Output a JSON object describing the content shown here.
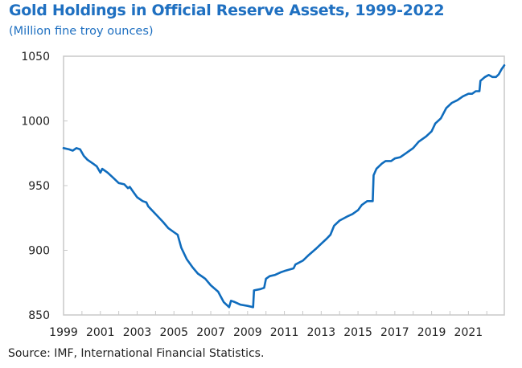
{
  "chart_data": {
    "type": "line",
    "title": "Gold Holdings in Official Reserve Assets, 1999-2022",
    "subtitle": "(Million fine troy ounces)",
    "xlabel": "",
    "ylabel": "",
    "xlim": [
      1999,
      2022.95
    ],
    "ylim": [
      850,
      1050
    ],
    "x_ticks": [
      1999,
      2001,
      2003,
      2005,
      2007,
      2009,
      2011,
      2013,
      2015,
      2017,
      2019,
      2021
    ],
    "x_tick_labels": [
      "1999",
      "2001",
      "2003",
      "2005",
      "2007",
      "2009",
      "2011",
      "2013",
      "2015",
      "2017",
      "2019",
      "2021"
    ],
    "y_ticks": [
      850,
      900,
      950,
      1000,
      1050
    ],
    "y_tick_labels": [
      "850",
      "900",
      "950",
      "1000",
      "1050"
    ],
    "grid": false,
    "legend": null,
    "line_color": "#0f6cbd",
    "series": [
      {
        "name": "Gold holdings",
        "x": [
          1999.0,
          1999.3,
          1999.5,
          1999.7,
          1999.9,
          2000.1,
          2000.3,
          2000.6,
          2000.8,
          2001.0,
          2001.1,
          2001.4,
          2001.7,
          2002.0,
          2002.3,
          2002.5,
          2002.6,
          2002.8,
          2003.0,
          2003.3,
          2003.5,
          2003.6,
          2004.0,
          2004.4,
          2004.7,
          2005.0,
          2005.2,
          2005.4,
          2005.7,
          2006.0,
          2006.3,
          2006.7,
          2007.0,
          2007.4,
          2007.7,
          2008.0,
          2008.1,
          2008.3,
          2008.6,
          2009.0,
          2009.3,
          2009.35,
          2009.7,
          2009.9,
          2010.0,
          2010.2,
          2010.5,
          2010.8,
          2011.0,
          2011.5,
          2011.6,
          2012.0,
          2012.3,
          2012.7,
          2013.0,
          2013.3,
          2013.5,
          2013.7,
          2014.0,
          2014.4,
          2014.7,
          2015.0,
          2015.2,
          2015.5,
          2015.8,
          2015.85,
          2016.0,
          2016.3,
          2016.5,
          2016.8,
          2017.0,
          2017.3,
          2017.6,
          2018.0,
          2018.3,
          2018.7,
          2019.0,
          2019.2,
          2019.5,
          2019.8,
          2020.1,
          2020.4,
          2020.7,
          2021.0,
          2021.2,
          2021.4,
          2021.6,
          2021.65,
          2021.9,
          2022.1,
          2022.3,
          2022.5,
          2022.65,
          2022.8,
          2022.95
        ],
        "values": [
          979,
          978,
          977,
          979,
          978,
          973,
          970,
          967,
          965,
          960,
          963,
          960,
          956,
          952,
          951,
          948,
          949,
          945,
          941,
          938,
          937,
          934,
          928,
          922,
          917,
          914,
          912,
          902,
          893,
          887,
          882,
          878,
          873,
          868,
          860,
          856,
          861,
          860,
          858,
          857,
          856,
          869,
          870,
          871,
          878,
          880,
          881,
          883,
          884,
          886,
          889,
          892,
          896,
          901,
          905,
          909,
          912,
          919,
          923,
          926,
          928,
          931,
          935,
          938,
          938,
          958,
          963,
          967,
          969,
          969,
          971,
          972,
          975,
          979,
          984,
          988,
          992,
          998,
          1002,
          1010,
          1014,
          1016,
          1019,
          1021,
          1021,
          1023,
          1023,
          1031,
          1034,
          1035.5,
          1034,
          1034,
          1036,
          1040,
          1043
        ]
      }
    ],
    "source": "Source: IMF, International Financial Statistics."
  }
}
